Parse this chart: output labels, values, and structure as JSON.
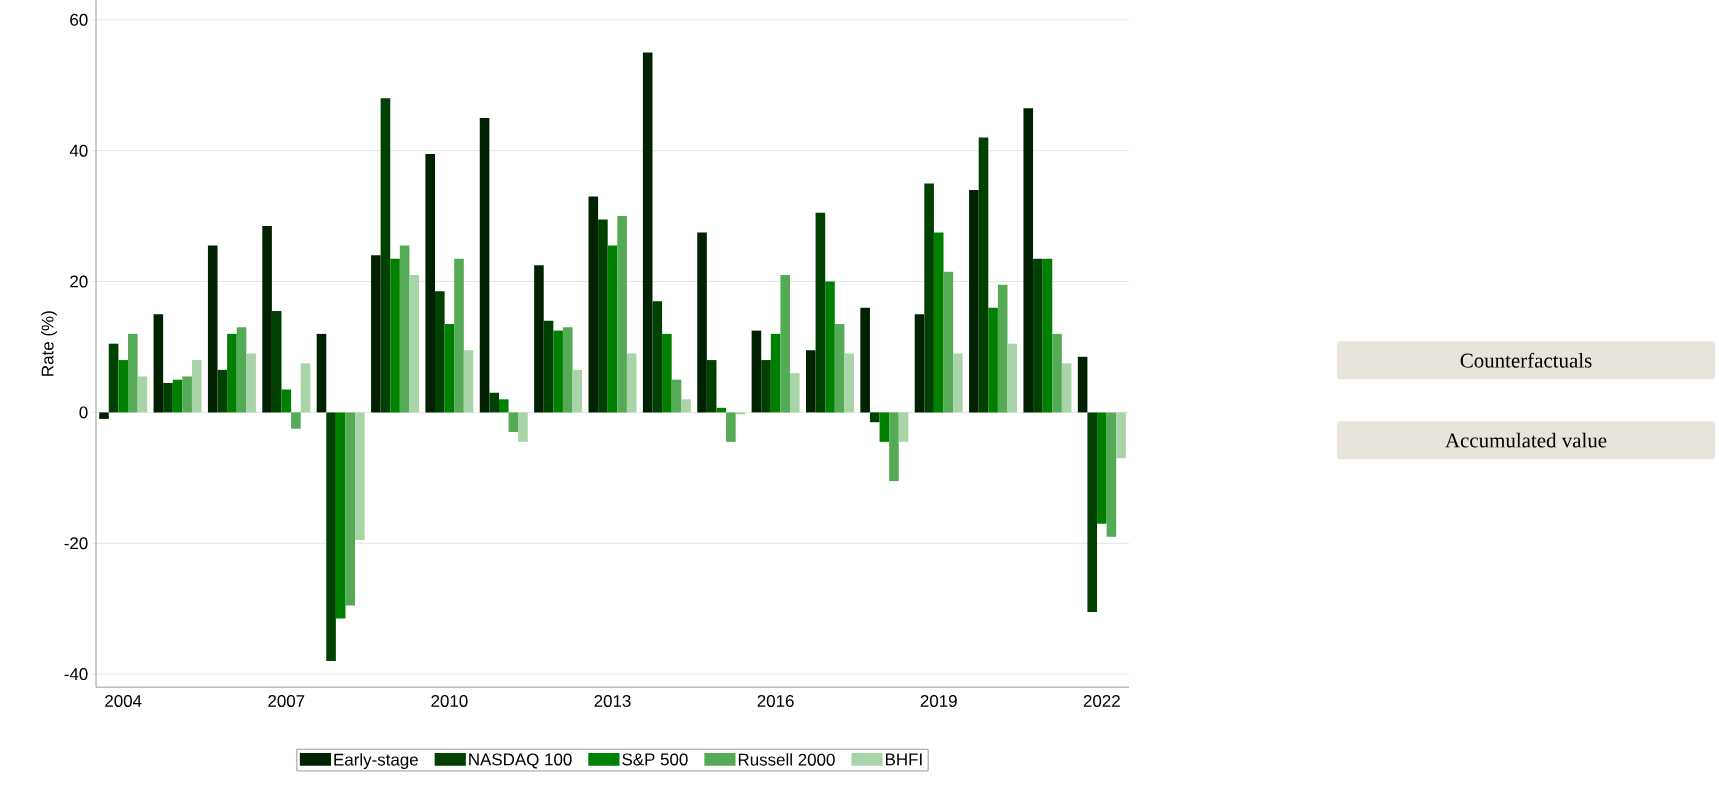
{
  "chart_data": {
    "type": "bar",
    "ylabel": "Rate (%)",
    "categories": [
      "2004",
      null,
      null,
      "2007",
      null,
      null,
      "2010",
      null,
      null,
      "2013",
      null,
      null,
      "2016",
      null,
      null,
      "2019",
      null,
      null,
      "2022"
    ],
    "series": [
      {
        "name": "Early-stage",
        "color": "#002200",
        "values": [
          -1,
          15,
          25.5,
          28.5,
          12,
          24,
          39.5,
          45,
          22.5,
          33,
          55,
          27.5,
          12.5,
          9.5,
          16,
          15,
          34,
          46.5,
          8.5
        ]
      },
      {
        "name": "NASDAQ 100",
        "color": "#004000",
        "values": [
          10.5,
          4.5,
          6.5,
          15.5,
          -38,
          48,
          18.5,
          3,
          14,
          29.5,
          17,
          8,
          8,
          30.5,
          -1.5,
          35,
          42,
          23.5,
          -30.5
        ]
      },
      {
        "name": "S&P 500",
        "color": "#008000",
        "values": [
          8,
          5,
          12,
          3.5,
          -31.5,
          23.5,
          13.5,
          2,
          12.5,
          25.5,
          12,
          0.7,
          12,
          20,
          -4.5,
          27.5,
          16,
          23.5,
          -17
        ]
      },
      {
        "name": "Russell 2000",
        "color": "#55aa55",
        "values": [
          12,
          5.5,
          13,
          -2.5,
          -29.5,
          25.5,
          23.5,
          -3,
          13,
          30,
          5,
          -4.5,
          21,
          13.5,
          -10.5,
          21.5,
          19.5,
          12,
          -19
        ]
      },
      {
        "name": "BHFI",
        "color": "#a8d5a8",
        "values": [
          5.5,
          8,
          9,
          7.5,
          -19.5,
          21,
          9.5,
          -4.5,
          6.5,
          9,
          2,
          -0.3,
          6,
          9,
          -4.5,
          9,
          10.5,
          7.5,
          -7
        ]
      }
    ],
    "ylim": [
      -42,
      63
    ],
    "yticks": [
      -40,
      -20,
      0,
      20,
      40,
      60
    ],
    "grid": "y",
    "legend": "bottom",
    "annotations": [
      "Counterfactuals",
      "Accumulated value"
    ]
  }
}
